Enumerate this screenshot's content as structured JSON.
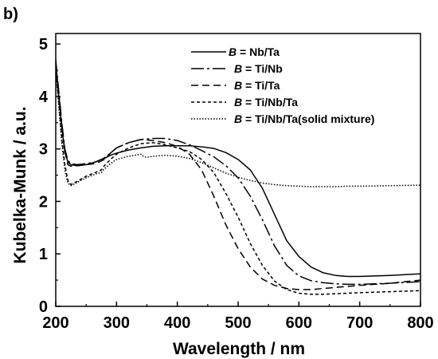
{
  "panel_label": "b)",
  "chart_data": {
    "type": "line",
    "title": "",
    "xlabel": "Wavelength / nm",
    "ylabel": "Kubelka-Munk / a.u.",
    "xlim": [
      200,
      800
    ],
    "ylim": [
      0,
      5.2
    ],
    "xticks": [
      200,
      300,
      400,
      500,
      600,
      700,
      800
    ],
    "yticks": [
      0,
      1,
      2,
      3,
      4,
      5
    ],
    "grid": false,
    "legend_position": "top-right",
    "series": [
      {
        "name": "B = Nb/Ta",
        "legend_var": "B",
        "legend_rest": " = Nb/Ta",
        "dash": "solid",
        "x": [
          200,
          205,
          210,
          215,
          220,
          225,
          235,
          250,
          265,
          275,
          280,
          290,
          300,
          320,
          340,
          360,
          380,
          400,
          420,
          440,
          460,
          480,
          500,
          520,
          540,
          560,
          580,
          600,
          620,
          640,
          660,
          680,
          700,
          750,
          800
        ],
        "y": [
          4.6,
          4.0,
          3.4,
          2.95,
          2.75,
          2.7,
          2.68,
          2.7,
          2.75,
          2.8,
          2.82,
          2.88,
          2.92,
          2.98,
          3.02,
          3.05,
          3.06,
          3.06,
          3.06,
          3.04,
          3.01,
          2.93,
          2.8,
          2.6,
          2.25,
          1.75,
          1.25,
          0.95,
          0.75,
          0.64,
          0.59,
          0.57,
          0.57,
          0.59,
          0.62
        ]
      },
      {
        "name": "B = Ti/Nb",
        "legend_var": "B",
        "legend_rest": " = Ti/Nb",
        "dash": "longdash",
        "x": [
          200,
          205,
          210,
          215,
          220,
          225,
          235,
          250,
          265,
          275,
          280,
          290,
          300,
          320,
          340,
          360,
          380,
          400,
          420,
          440,
          460,
          480,
          500,
          520,
          540,
          560,
          580,
          600,
          620,
          640,
          660,
          680,
          700,
          750,
          800
        ],
        "y": [
          4.7,
          4.1,
          3.5,
          3.0,
          2.78,
          2.72,
          2.7,
          2.72,
          2.75,
          2.8,
          2.83,
          2.92,
          3.02,
          3.12,
          3.18,
          3.2,
          3.2,
          3.16,
          3.08,
          2.97,
          2.85,
          2.68,
          2.45,
          2.1,
          1.65,
          1.15,
          0.78,
          0.58,
          0.49,
          0.45,
          0.43,
          0.42,
          0.42,
          0.44,
          0.47
        ]
      },
      {
        "name": "B = Ti/Ta",
        "legend_var": "B",
        "legend_rest": " = Ti/Ta",
        "dash": "dash",
        "x": [
          200,
          205,
          210,
          215,
          220,
          225,
          235,
          250,
          265,
          275,
          280,
          290,
          300,
          320,
          340,
          360,
          380,
          400,
          420,
          440,
          460,
          480,
          500,
          520,
          540,
          560,
          580,
          600,
          620,
          640,
          660,
          680,
          700,
          750,
          800
        ],
        "y": [
          4.65,
          4.05,
          3.45,
          2.95,
          2.7,
          2.67,
          2.68,
          2.7,
          2.72,
          2.77,
          2.8,
          2.92,
          3.02,
          3.12,
          3.18,
          3.16,
          3.12,
          3.05,
          2.9,
          2.6,
          2.1,
          1.55,
          1.1,
          0.75,
          0.52,
          0.4,
          0.34,
          0.32,
          0.32,
          0.34,
          0.36,
          0.38,
          0.4,
          0.44,
          0.5
        ]
      },
      {
        "name": "B = Ti/Nb/Ta",
        "legend_var": "B",
        "legend_rest": " = Ti/Nb/Ta",
        "dash": "shortdash",
        "x": [
          200,
          205,
          210,
          215,
          220,
          225,
          235,
          250,
          265,
          275,
          280,
          290,
          300,
          320,
          340,
          360,
          380,
          400,
          420,
          440,
          460,
          480,
          500,
          520,
          540,
          560,
          580,
          600,
          620,
          640,
          660,
          680,
          700,
          750,
          800
        ],
        "y": [
          4.55,
          3.9,
          3.2,
          2.7,
          2.4,
          2.32,
          2.38,
          2.48,
          2.55,
          2.6,
          2.68,
          2.8,
          2.9,
          3.02,
          3.1,
          3.12,
          3.08,
          3.02,
          2.95,
          2.8,
          2.55,
          2.15,
          1.7,
          1.2,
          0.78,
          0.48,
          0.32,
          0.25,
          0.23,
          0.23,
          0.24,
          0.25,
          0.26,
          0.28,
          0.3
        ]
      },
      {
        "name": "B = Ti/Nb/Ta(solid mixture)",
        "legend_var": "B",
        "legend_rest": " = Ti/Nb/Ta(solid mixture)",
        "dash": "dot",
        "x": [
          200,
          205,
          210,
          215,
          220,
          225,
          235,
          250,
          265,
          275,
          280,
          290,
          300,
          320,
          340,
          345,
          350,
          360,
          380,
          400,
          420,
          440,
          460,
          480,
          500,
          520,
          540,
          560,
          580,
          600,
          620,
          640,
          660,
          680,
          700,
          750,
          800
        ],
        "y": [
          4.5,
          3.8,
          3.1,
          2.6,
          2.35,
          2.3,
          2.36,
          2.45,
          2.52,
          2.55,
          2.62,
          2.72,
          2.8,
          2.86,
          2.9,
          2.85,
          2.84,
          2.86,
          2.88,
          2.86,
          2.82,
          2.74,
          2.64,
          2.54,
          2.46,
          2.4,
          2.35,
          2.32,
          2.3,
          2.29,
          2.28,
          2.28,
          2.28,
          2.29,
          2.29,
          2.3,
          2.31
        ]
      }
    ]
  }
}
